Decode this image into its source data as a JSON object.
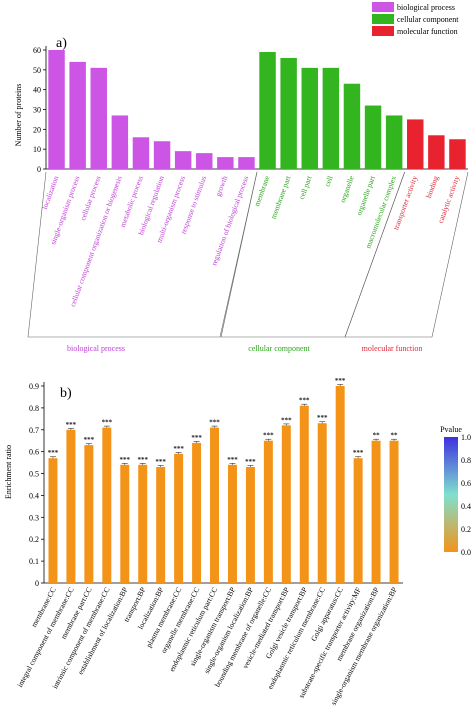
{
  "chart_data": [
    {
      "type": "bar",
      "panel_label": "a)",
      "ylabel": "Number of proteins",
      "ylim": [
        0,
        60
      ],
      "yticks": [
        0,
        10,
        20,
        30,
        40,
        50,
        60
      ],
      "legend": {
        "placement": "top-right",
        "entries": [
          {
            "name": "biological process",
            "color": "#cc55e6"
          },
          {
            "name": "cellular component",
            "color": "#33b51f"
          },
          {
            "name": "molecular function",
            "color": "#e8232f"
          }
        ]
      },
      "groups": [
        {
          "name": "biological process",
          "color": "#cc55e6",
          "label_color": "#c040d8"
        },
        {
          "name": "cellular component",
          "color": "#33b51f",
          "label_color": "#2aa61a"
        },
        {
          "name": "molecular function",
          "color": "#e8232f",
          "label_color": "#e0283a"
        }
      ],
      "categories": [
        {
          "label": "localization",
          "group": 0,
          "value": 60
        },
        {
          "label": "single-organism process",
          "group": 0,
          "value": 54
        },
        {
          "label": "cellular process",
          "group": 0,
          "value": 51
        },
        {
          "label": "cellular component organization or biogenesis",
          "group": 0,
          "value": 27
        },
        {
          "label": "metabolic process",
          "group": 0,
          "value": 16
        },
        {
          "label": "biological regulation",
          "group": 0,
          "value": 14
        },
        {
          "label": "multi-organism process",
          "group": 0,
          "value": 9
        },
        {
          "label": "response to stimulus",
          "group": 0,
          "value": 8
        },
        {
          "label": "growth",
          "group": 0,
          "value": 6
        },
        {
          "label": "regulation of biological process",
          "group": 0,
          "value": 6
        },
        {
          "label": "membrane",
          "group": 1,
          "value": 59
        },
        {
          "label": "membrane part",
          "group": 1,
          "value": 56
        },
        {
          "label": "cell part",
          "group": 1,
          "value": 51
        },
        {
          "label": "cell",
          "group": 1,
          "value": 51
        },
        {
          "label": "organelle",
          "group": 1,
          "value": 43
        },
        {
          "label": "organelle part",
          "group": 1,
          "value": 32
        },
        {
          "label": "macromolecular complex",
          "group": 1,
          "value": 27
        },
        {
          "label": "transporter activity",
          "group": 2,
          "value": 25
        },
        {
          "label": "binding",
          "group": 2,
          "value": 17
        },
        {
          "label": "catalytic activity",
          "group": 2,
          "value": 15
        }
      ]
    },
    {
      "type": "bar",
      "panel_label": "b)",
      "ylabel": "Enrichment ratio",
      "ylim": [
        0,
        0.9
      ],
      "yticks": [
        0,
        0.1,
        0.2,
        0.3,
        0.4,
        0.5,
        0.6,
        0.7,
        0.8,
        0.9
      ],
      "bar_color": "#f39318",
      "colorbar": {
        "title": "Pvalue",
        "ticks": [
          0.0,
          0.2,
          0.4,
          0.6,
          0.8,
          1.0
        ],
        "colors": [
          "#f39318",
          "#7fe0cf",
          "#3f2fe0"
        ]
      },
      "categories": [
        "membrane:CC",
        "integral component of membrane:CC",
        "membrane part:CC",
        "intrinsic component of membrane:CC",
        "establishment of localization:BP",
        "transport:BP",
        "localization:BP",
        "plasma membrane:CC",
        "organelle membrane:CC",
        "endoplasmic reticulum part:CC",
        "single-organism transport:BP",
        "single-organism localization:BP",
        "bounding membrane of organelle:CC",
        "vesicle-mediated transport:BP",
        "Golgi vesicle transport:BP",
        "endoplasmic reticulum membrane:CC",
        "Golgi apparatus:CC",
        "substrate-specific transporter activity:MF",
        "membrane organization:BP",
        "single-organism membrane organization:BP"
      ],
      "values": [
        0.57,
        0.7,
        0.63,
        0.71,
        0.54,
        0.54,
        0.53,
        0.59,
        0.64,
        0.71,
        0.54,
        0.53,
        0.65,
        0.72,
        0.81,
        0.73,
        0.9,
        0.57,
        0.65,
        0.65
      ],
      "significance": [
        "***",
        "***",
        "***",
        "***",
        "***",
        "***",
        "***",
        "***",
        "***",
        "***",
        "***",
        "***",
        "***",
        "***",
        "***",
        "***",
        "***",
        "***",
        "**",
        "**"
      ]
    }
  ]
}
